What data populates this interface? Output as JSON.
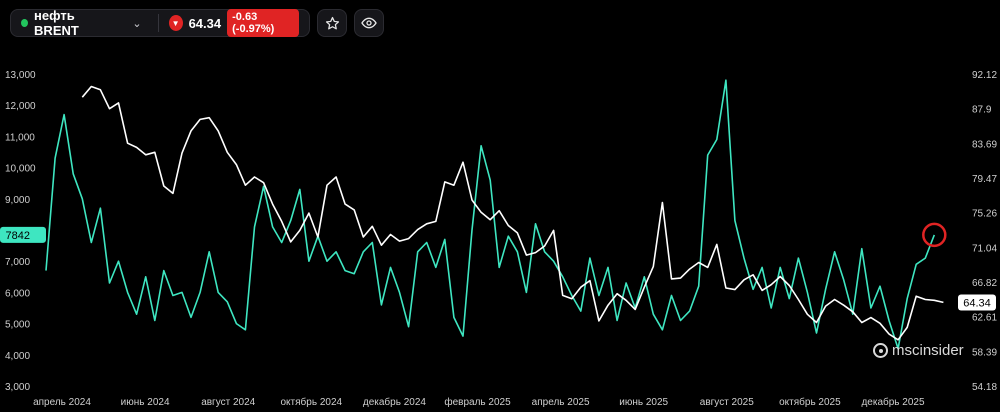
{
  "header": {
    "instrument": "нефть BRENT",
    "price": "64.34",
    "change": "-0.63 (-0.97%)",
    "status_color": "#22c55e",
    "down_color": "#e02424",
    "icons": [
      "chevron-down-icon",
      "down-arrow-icon",
      "star-icon",
      "eye-icon"
    ]
  },
  "watermark": "mscinsider",
  "chart_data": {
    "type": "line",
    "title": "",
    "xlabel": "",
    "ylabel": "",
    "grid": false,
    "legend": "none",
    "x_ticks": [
      "апрель 2024",
      "июнь 2024",
      "август 2024",
      "октябрь 2024",
      "декабрь 2024",
      "февраль 2025",
      "апрель 2025",
      "июнь 2025",
      "август 2025",
      "октябрь 2025",
      "декабрь 2025"
    ],
    "x_range": [
      "2024-03-01",
      "2026-01-25"
    ],
    "left_axis": {
      "ticks": [
        "13,000",
        "12,000",
        "11,000",
        "10,000",
        "9,000",
        "8,000",
        "7,000",
        "6,000",
        "5,000",
        "4,000",
        "3,000"
      ],
      "range": [
        3000,
        13000
      ]
    },
    "right_axis": {
      "ticks": [
        "92.12",
        "87.9",
        "83.69",
        "79.47",
        "75.26",
        "71.04",
        "66.82",
        "62.61",
        "58.39",
        "54.18"
      ],
      "range": [
        54.18,
        92.12
      ]
    },
    "series": [
      {
        "color": "#3ee6c1",
        "axis": "left",
        "last_value": "7842",
        "x": [
          "2024-03-01",
          "2024-03-08",
          "2024-03-15",
          "2024-03-22",
          "2024-03-29",
          "2024-04-05",
          "2024-04-12",
          "2024-04-19",
          "2024-04-26",
          "2024-05-03",
          "2024-05-10",
          "2024-05-17",
          "2024-05-24",
          "2024-05-31",
          "2024-06-07",
          "2024-06-14",
          "2024-06-21",
          "2024-06-28",
          "2024-07-05",
          "2024-07-12",
          "2024-07-19",
          "2024-07-26",
          "2024-08-02",
          "2024-08-09",
          "2024-08-16",
          "2024-08-23",
          "2024-08-30",
          "2024-09-06",
          "2024-09-13",
          "2024-09-20",
          "2024-09-27",
          "2024-10-04",
          "2024-10-11",
          "2024-10-18",
          "2024-10-25",
          "2024-11-01",
          "2024-11-08",
          "2024-11-15",
          "2024-11-22",
          "2024-11-29",
          "2024-12-06",
          "2024-12-13",
          "2024-12-20",
          "2024-12-27",
          "2025-01-03",
          "2025-01-10",
          "2025-01-17",
          "2025-01-24",
          "2025-01-31",
          "2025-02-07",
          "2025-02-14",
          "2025-02-21",
          "2025-02-28",
          "2025-03-07",
          "2025-03-14",
          "2025-03-21",
          "2025-03-28",
          "2025-04-04",
          "2025-04-11",
          "2025-04-18",
          "2025-04-25",
          "2025-05-02",
          "2025-05-09",
          "2025-05-16",
          "2025-05-23",
          "2025-05-30",
          "2025-06-06",
          "2025-06-13",
          "2025-06-20",
          "2025-06-27",
          "2025-07-04",
          "2025-07-11",
          "2025-07-18",
          "2025-07-25",
          "2025-08-01",
          "2025-08-08",
          "2025-08-15",
          "2025-08-22",
          "2025-08-29",
          "2025-09-05",
          "2025-09-12",
          "2025-09-19",
          "2025-09-26",
          "2025-10-03",
          "2025-10-10",
          "2025-10-17",
          "2025-10-24",
          "2025-10-31",
          "2025-11-07",
          "2025-11-14",
          "2025-11-21",
          "2025-11-28",
          "2025-12-05",
          "2025-12-12",
          "2025-12-19",
          "2025-12-26",
          "2026-01-02",
          "2026-01-09",
          "2026-01-16"
        ],
        "values": [
          6700,
          10300,
          11700,
          9800,
          9000,
          7600,
          8700,
          6300,
          7000,
          6000,
          5300,
          6500,
          5100,
          6700,
          5900,
          6000,
          5200,
          6000,
          7300,
          6000,
          5700,
          5000,
          4800,
          8100,
          9400,
          8100,
          7600,
          8300,
          9300,
          7000,
          7800,
          7000,
          7300,
          6700,
          6600,
          7300,
          7600,
          5600,
          6800,
          6000,
          4900,
          7300,
          7600,
          6800,
          7700,
          5200,
          4600,
          8000,
          10700,
          9600,
          6800,
          7800,
          7300,
          6000,
          8200,
          7300,
          7000,
          6500,
          5900,
          5400,
          7100,
          5900,
          6800,
          5100,
          6300,
          5500,
          6500,
          5300,
          4800,
          5900,
          5100,
          5400,
          6200,
          10400,
          10900,
          12800,
          8300,
          7100,
          6100,
          6800,
          5500,
          6800,
          5800,
          7100,
          6000,
          4700,
          6100,
          7300,
          6400,
          5300,
          7400,
          5500,
          6200,
          5100,
          4200,
          5800,
          6900,
          7100,
          7842
        ]
      },
      {
        "color": "#ffffff",
        "axis": "right",
        "last_value": "64.34",
        "x": [
          "2024-03-29",
          "2024-04-05",
          "2024-04-12",
          "2024-04-19",
          "2024-04-26",
          "2024-05-03",
          "2024-05-10",
          "2024-05-17",
          "2024-05-24",
          "2024-05-31",
          "2024-06-07",
          "2024-06-14",
          "2024-06-21",
          "2024-06-28",
          "2024-07-05",
          "2024-07-12",
          "2024-07-19",
          "2024-07-26",
          "2024-08-02",
          "2024-08-09",
          "2024-08-16",
          "2024-08-23",
          "2024-08-30",
          "2024-09-06",
          "2024-09-13",
          "2024-09-20",
          "2024-09-27",
          "2024-10-04",
          "2024-10-11",
          "2024-10-18",
          "2024-10-25",
          "2024-11-01",
          "2024-11-08",
          "2024-11-15",
          "2024-11-22",
          "2024-11-29",
          "2024-12-06",
          "2024-12-13",
          "2024-12-20",
          "2024-12-27",
          "2025-01-03",
          "2025-01-10",
          "2025-01-17",
          "2025-01-24",
          "2025-01-31",
          "2025-02-07",
          "2025-02-14",
          "2025-02-21",
          "2025-02-28",
          "2025-03-07",
          "2025-03-14",
          "2025-03-21",
          "2025-03-28",
          "2025-04-04",
          "2025-04-11",
          "2025-04-18",
          "2025-04-25",
          "2025-05-02",
          "2025-05-09",
          "2025-05-16",
          "2025-05-23",
          "2025-05-30",
          "2025-06-06",
          "2025-06-13",
          "2025-06-20",
          "2025-06-27",
          "2025-07-04",
          "2025-07-11",
          "2025-07-18",
          "2025-07-25",
          "2025-08-01",
          "2025-08-08",
          "2025-08-15",
          "2025-08-22",
          "2025-08-29",
          "2025-09-05",
          "2025-09-12",
          "2025-09-19",
          "2025-09-26",
          "2025-10-03",
          "2025-10-10",
          "2025-10-17",
          "2025-10-24",
          "2025-10-31",
          "2025-11-07",
          "2025-11-14",
          "2025-11-21",
          "2025-11-28",
          "2025-12-05",
          "2025-12-12",
          "2025-12-19",
          "2025-12-26",
          "2026-01-02",
          "2026-01-09",
          "2026-01-16",
          "2026-01-23"
        ],
        "values": [
          89.3,
          90.6,
          90.2,
          87.9,
          88.6,
          83.7,
          83.2,
          82.3,
          82.6,
          78.5,
          77.6,
          82.5,
          85.2,
          86.6,
          86.8,
          85.2,
          82.6,
          81.1,
          78.6,
          79.6,
          78.9,
          76.3,
          74.2,
          71.7,
          73.1,
          75.2,
          72.3,
          78.6,
          79.6,
          76.3,
          75.6,
          72.3,
          73.6,
          71.3,
          72.6,
          71.8,
          72.1,
          73.2,
          73.9,
          74.2,
          79.0,
          78.6,
          81.4,
          76.8,
          75.3,
          74.4,
          75.5,
          73.7,
          72.8,
          70.1,
          70.4,
          71.2,
          73.1,
          65.2,
          64.8,
          66.2,
          67.0,
          62.1,
          64.0,
          65.4,
          64.6,
          63.5,
          66.2,
          68.7,
          76.5,
          67.2,
          67.3,
          68.4,
          69.2,
          68.6,
          71.4,
          66.1,
          65.9,
          67.1,
          67.7,
          65.8,
          66.5,
          67.5,
          66.4,
          64.7,
          62.9,
          61.9,
          63.9,
          64.7,
          64.0,
          63.2,
          61.9,
          62.5,
          61.8,
          60.5,
          59.8,
          61.3,
          65.1,
          64.7,
          64.6,
          64.34
        ]
      }
    ]
  }
}
